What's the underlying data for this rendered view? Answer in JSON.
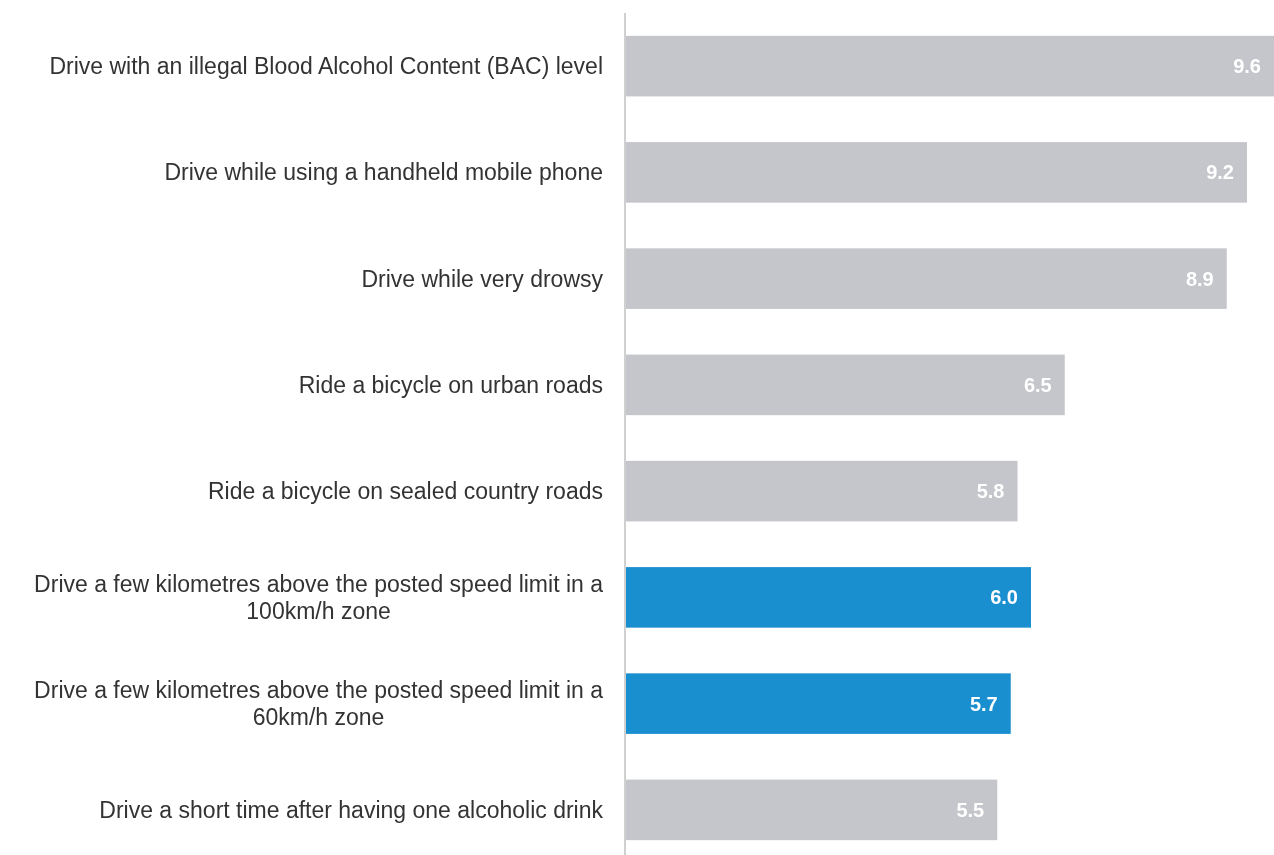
{
  "chart_data": {
    "type": "bar",
    "orientation": "horizontal",
    "tick_labels": "y",
    "value_labels": [
      "9.6",
      "9.2",
      "8.9",
      "6.5",
      "5.8",
      "6.0",
      "5.7",
      "5.5"
    ],
    "categories": [
      "Drive with an illegal Blood Alcohol Content (BAC) level",
      "Drive while using a handheld mobile phone",
      "Drive while very drowsy",
      "Ride a bicycle on urban roads",
      "Ride a bicycle on sealed country roads",
      "Drive a few kilometres above the posted speed limit in a 100km/h zone",
      "Drive a few kilometres above the posted speed limit in a 60km/h zone",
      "Drive a short time after having one alcoholic drink"
    ],
    "values": [
      9.6,
      9.2,
      8.9,
      6.5,
      5.8,
      6.0,
      5.7,
      5.5
    ],
    "colors": [
      "#c5c6cb",
      "#c5c6cb",
      "#c5c6cb",
      "#c5c6cb",
      "#c5c6cb",
      "#1a8fd0",
      "#1a8fd0",
      "#c5c6cb"
    ]
  }
}
